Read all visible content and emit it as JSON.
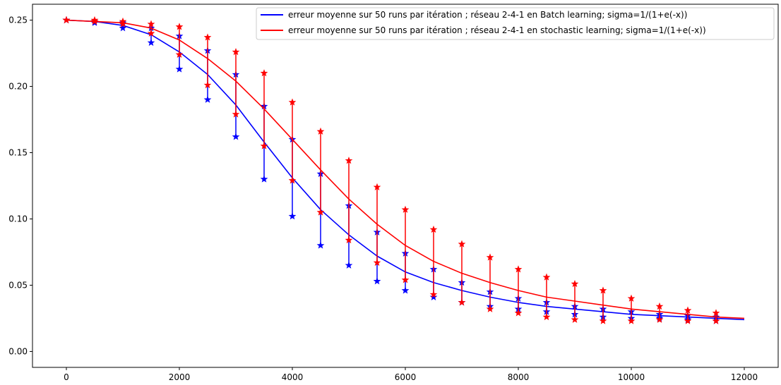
{
  "chart_data": {
    "type": "line",
    "title": "",
    "xlabel": "",
    "ylabel": "",
    "xlim": [
      -600,
      12600
    ],
    "ylim": [
      -0.012,
      0.262
    ],
    "grid": false,
    "legend_position": "top-right",
    "x_ticks": [
      0,
      2000,
      4000,
      6000,
      8000,
      10000,
      12000
    ],
    "x_tick_labels": [
      "0",
      "2000",
      "4000",
      "6000",
      "8000",
      "10000",
      "12000"
    ],
    "y_ticks": [
      0.0,
      0.05,
      0.1,
      0.15,
      0.2,
      0.25
    ],
    "y_tick_labels": [
      "0.00",
      "0.05",
      "0.10",
      "0.15",
      "0.20",
      "0.25"
    ],
    "series": [
      {
        "name": "erreur moyenne sur 50 runs par itération ; réseau 2-4-1 en Batch learning; sigma=1/(1+e(-x))",
        "color": "#0000ff",
        "x": [
          0,
          500,
          1000,
          1500,
          2000,
          2500,
          3000,
          3500,
          4000,
          4500,
          5000,
          5500,
          6000,
          6500,
          7000,
          7500,
          8000,
          8500,
          9000,
          9500,
          10000,
          10500,
          11000,
          11500,
          12000
        ],
        "y": [
          0.25,
          0.249,
          0.246,
          0.239,
          0.226,
          0.209,
          0.186,
          0.158,
          0.131,
          0.107,
          0.088,
          0.072,
          0.06,
          0.052,
          0.046,
          0.041,
          0.037,
          0.034,
          0.032,
          0.03,
          0.028,
          0.027,
          0.026,
          0.025,
          0.024
        ],
        "error_bars": [
          {
            "x": 0,
            "low": 0.25,
            "high": 0.25
          },
          {
            "x": 500,
            "low": 0.248,
            "high": 0.249
          },
          {
            "x": 1000,
            "low": 0.244,
            "high": 0.248
          },
          {
            "x": 1500,
            "low": 0.233,
            "high": 0.244
          },
          {
            "x": 2000,
            "low": 0.213,
            "high": 0.238
          },
          {
            "x": 2500,
            "low": 0.19,
            "high": 0.227
          },
          {
            "x": 3000,
            "low": 0.162,
            "high": 0.209
          },
          {
            "x": 3500,
            "low": 0.13,
            "high": 0.185
          },
          {
            "x": 4000,
            "low": 0.102,
            "high": 0.16
          },
          {
            "x": 4500,
            "low": 0.08,
            "high": 0.134
          },
          {
            "x": 5000,
            "low": 0.065,
            "high": 0.11
          },
          {
            "x": 5500,
            "low": 0.053,
            "high": 0.09
          },
          {
            "x": 6000,
            "low": 0.046,
            "high": 0.074
          },
          {
            "x": 6500,
            "low": 0.041,
            "high": 0.062
          },
          {
            "x": 7000,
            "low": 0.037,
            "high": 0.052
          },
          {
            "x": 7500,
            "low": 0.034,
            "high": 0.045
          },
          {
            "x": 8000,
            "low": 0.032,
            "high": 0.04
          },
          {
            "x": 8500,
            "low": 0.03,
            "high": 0.037
          },
          {
            "x": 9000,
            "low": 0.028,
            "high": 0.034
          },
          {
            "x": 9500,
            "low": 0.026,
            "high": 0.032
          },
          {
            "x": 10000,
            "low": 0.025,
            "high": 0.03
          },
          {
            "x": 10500,
            "low": 0.025,
            "high": 0.028
          },
          {
            "x": 11000,
            "low": 0.024,
            "high": 0.027
          },
          {
            "x": 11500,
            "low": 0.023,
            "high": 0.026
          }
        ]
      },
      {
        "name": "erreur moyenne sur 50 runs par itération ; réseau 2-4-1 en stochastic learning; sigma=1/(1+e(-x))",
        "color": "#ff0000",
        "x": [
          0,
          500,
          1000,
          1500,
          2000,
          2500,
          3000,
          3500,
          4000,
          4500,
          5000,
          5500,
          6000,
          6500,
          7000,
          7500,
          8000,
          8500,
          9000,
          9500,
          10000,
          10500,
          11000,
          11500,
          12000
        ],
        "y": [
          0.25,
          0.249,
          0.248,
          0.244,
          0.235,
          0.221,
          0.204,
          0.183,
          0.16,
          0.137,
          0.115,
          0.096,
          0.08,
          0.068,
          0.059,
          0.052,
          0.046,
          0.041,
          0.038,
          0.035,
          0.032,
          0.03,
          0.028,
          0.026,
          0.025
        ],
        "error_bars": [
          {
            "x": 0,
            "low": 0.25,
            "high": 0.25
          },
          {
            "x": 500,
            "low": 0.249,
            "high": 0.25
          },
          {
            "x": 1000,
            "low": 0.247,
            "high": 0.249
          },
          {
            "x": 1500,
            "low": 0.24,
            "high": 0.247
          },
          {
            "x": 2000,
            "low": 0.224,
            "high": 0.245
          },
          {
            "x": 2500,
            "low": 0.201,
            "high": 0.237
          },
          {
            "x": 3000,
            "low": 0.179,
            "high": 0.226
          },
          {
            "x": 3500,
            "low": 0.155,
            "high": 0.21
          },
          {
            "x": 4000,
            "low": 0.129,
            "high": 0.188
          },
          {
            "x": 4500,
            "low": 0.105,
            "high": 0.166
          },
          {
            "x": 5000,
            "low": 0.084,
            "high": 0.144
          },
          {
            "x": 5500,
            "low": 0.067,
            "high": 0.124
          },
          {
            "x": 6000,
            "low": 0.054,
            "high": 0.107
          },
          {
            "x": 6500,
            "low": 0.043,
            "high": 0.092
          },
          {
            "x": 7000,
            "low": 0.037,
            "high": 0.081
          },
          {
            "x": 7500,
            "low": 0.032,
            "high": 0.071
          },
          {
            "x": 8000,
            "low": 0.029,
            "high": 0.062
          },
          {
            "x": 8500,
            "low": 0.026,
            "high": 0.056
          },
          {
            "x": 9000,
            "low": 0.024,
            "high": 0.051
          },
          {
            "x": 9500,
            "low": 0.023,
            "high": 0.046
          },
          {
            "x": 10000,
            "low": 0.023,
            "high": 0.04
          },
          {
            "x": 10500,
            "low": 0.024,
            "high": 0.034
          },
          {
            "x": 11000,
            "low": 0.023,
            "high": 0.031
          },
          {
            "x": 11500,
            "low": 0.023,
            "high": 0.029
          }
        ]
      }
    ]
  }
}
